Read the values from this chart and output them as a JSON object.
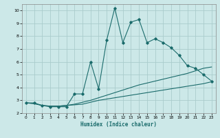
{
  "xlabel": "Humidex (Indice chaleur)",
  "background_color": "#cce8e8",
  "grid_color": "#aacccc",
  "line_color": "#1a6b6b",
  "xlim": [
    -0.5,
    23.5
  ],
  "ylim": [
    2,
    10.5
  ],
  "yticks": [
    2,
    3,
    4,
    5,
    6,
    7,
    8,
    9,
    10
  ],
  "xticks": [
    0,
    1,
    2,
    3,
    4,
    5,
    6,
    7,
    8,
    9,
    10,
    11,
    12,
    13,
    14,
    15,
    16,
    17,
    18,
    19,
    20,
    21,
    22,
    23
  ],
  "series1_x": [
    0,
    1,
    2,
    3,
    4,
    5,
    6,
    7,
    8,
    9,
    10,
    11,
    12,
    13,
    14,
    15,
    16,
    17,
    18,
    19,
    20,
    21,
    22,
    23
  ],
  "series1_y": [
    2.8,
    2.8,
    2.6,
    2.5,
    2.5,
    2.5,
    3.5,
    3.5,
    6.0,
    3.9,
    7.7,
    10.2,
    7.5,
    9.1,
    9.3,
    7.5,
    7.8,
    7.5,
    7.1,
    6.5,
    5.7,
    5.5,
    5.0,
    4.5
  ],
  "series2_x": [
    0,
    1,
    2,
    3,
    4,
    5,
    6,
    7,
    8,
    9,
    10,
    11,
    12,
    13,
    14,
    15,
    16,
    17,
    18,
    19,
    20,
    21,
    22,
    23
  ],
  "series2_y": [
    2.8,
    2.75,
    2.6,
    2.55,
    2.55,
    2.6,
    2.7,
    2.85,
    3.0,
    3.2,
    3.4,
    3.6,
    3.8,
    4.0,
    4.2,
    4.35,
    4.5,
    4.65,
    4.8,
    4.95,
    5.1,
    5.3,
    5.5,
    5.6
  ],
  "series3_x": [
    0,
    1,
    2,
    3,
    4,
    5,
    6,
    7,
    8,
    9,
    10,
    11,
    12,
    13,
    14,
    15,
    16,
    17,
    18,
    19,
    20,
    21,
    22,
    23
  ],
  "series3_y": [
    2.8,
    2.75,
    2.6,
    2.55,
    2.55,
    2.6,
    2.65,
    2.7,
    2.85,
    3.0,
    3.1,
    3.2,
    3.3,
    3.4,
    3.5,
    3.6,
    3.7,
    3.8,
    3.9,
    4.0,
    4.1,
    4.2,
    4.3,
    4.45
  ]
}
